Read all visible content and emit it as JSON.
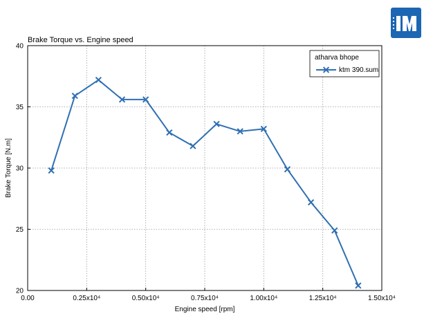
{
  "chart_data": {
    "type": "line",
    "title": "Brake Torque vs. Engine speed",
    "xlabel": "Engine speed  [rpm]",
    "ylabel": "Brake Torque  [N.m]",
    "xlim": [
      0,
      15000
    ],
    "ylim": [
      20,
      40
    ],
    "xticks": [
      0,
      2500,
      5000,
      7500,
      10000,
      12500,
      15000
    ],
    "xtick_labels": [
      "0.00",
      "0.25x10⁴",
      "0.50x10⁴",
      "0.75x10⁴",
      "1.00x10⁴",
      "1.25x10⁴",
      "1.50x10⁴"
    ],
    "yticks": [
      20,
      25,
      30,
      35,
      40
    ],
    "ytick_labels": [
      "20",
      "25",
      "30",
      "35",
      "40"
    ],
    "grid": true,
    "legend_position": "top-right",
    "legend_title": "atharva bhope",
    "series": [
      {
        "name": "ktm 390.sum",
        "color": "#2f6fb2",
        "marker": "x",
        "x": [
          1000,
          2000,
          3000,
          4000,
          5000,
          6000,
          7000,
          8000,
          9000,
          10000,
          11000,
          12000,
          13000,
          14000
        ],
        "y": [
          29.8,
          35.9,
          37.2,
          35.6,
          35.6,
          32.9,
          31.8,
          33.6,
          33.0,
          33.2,
          29.9,
          27.2,
          24.9,
          20.4
        ]
      }
    ]
  },
  "logo": {
    "name": "software-logo",
    "color": "#1c66b3"
  }
}
